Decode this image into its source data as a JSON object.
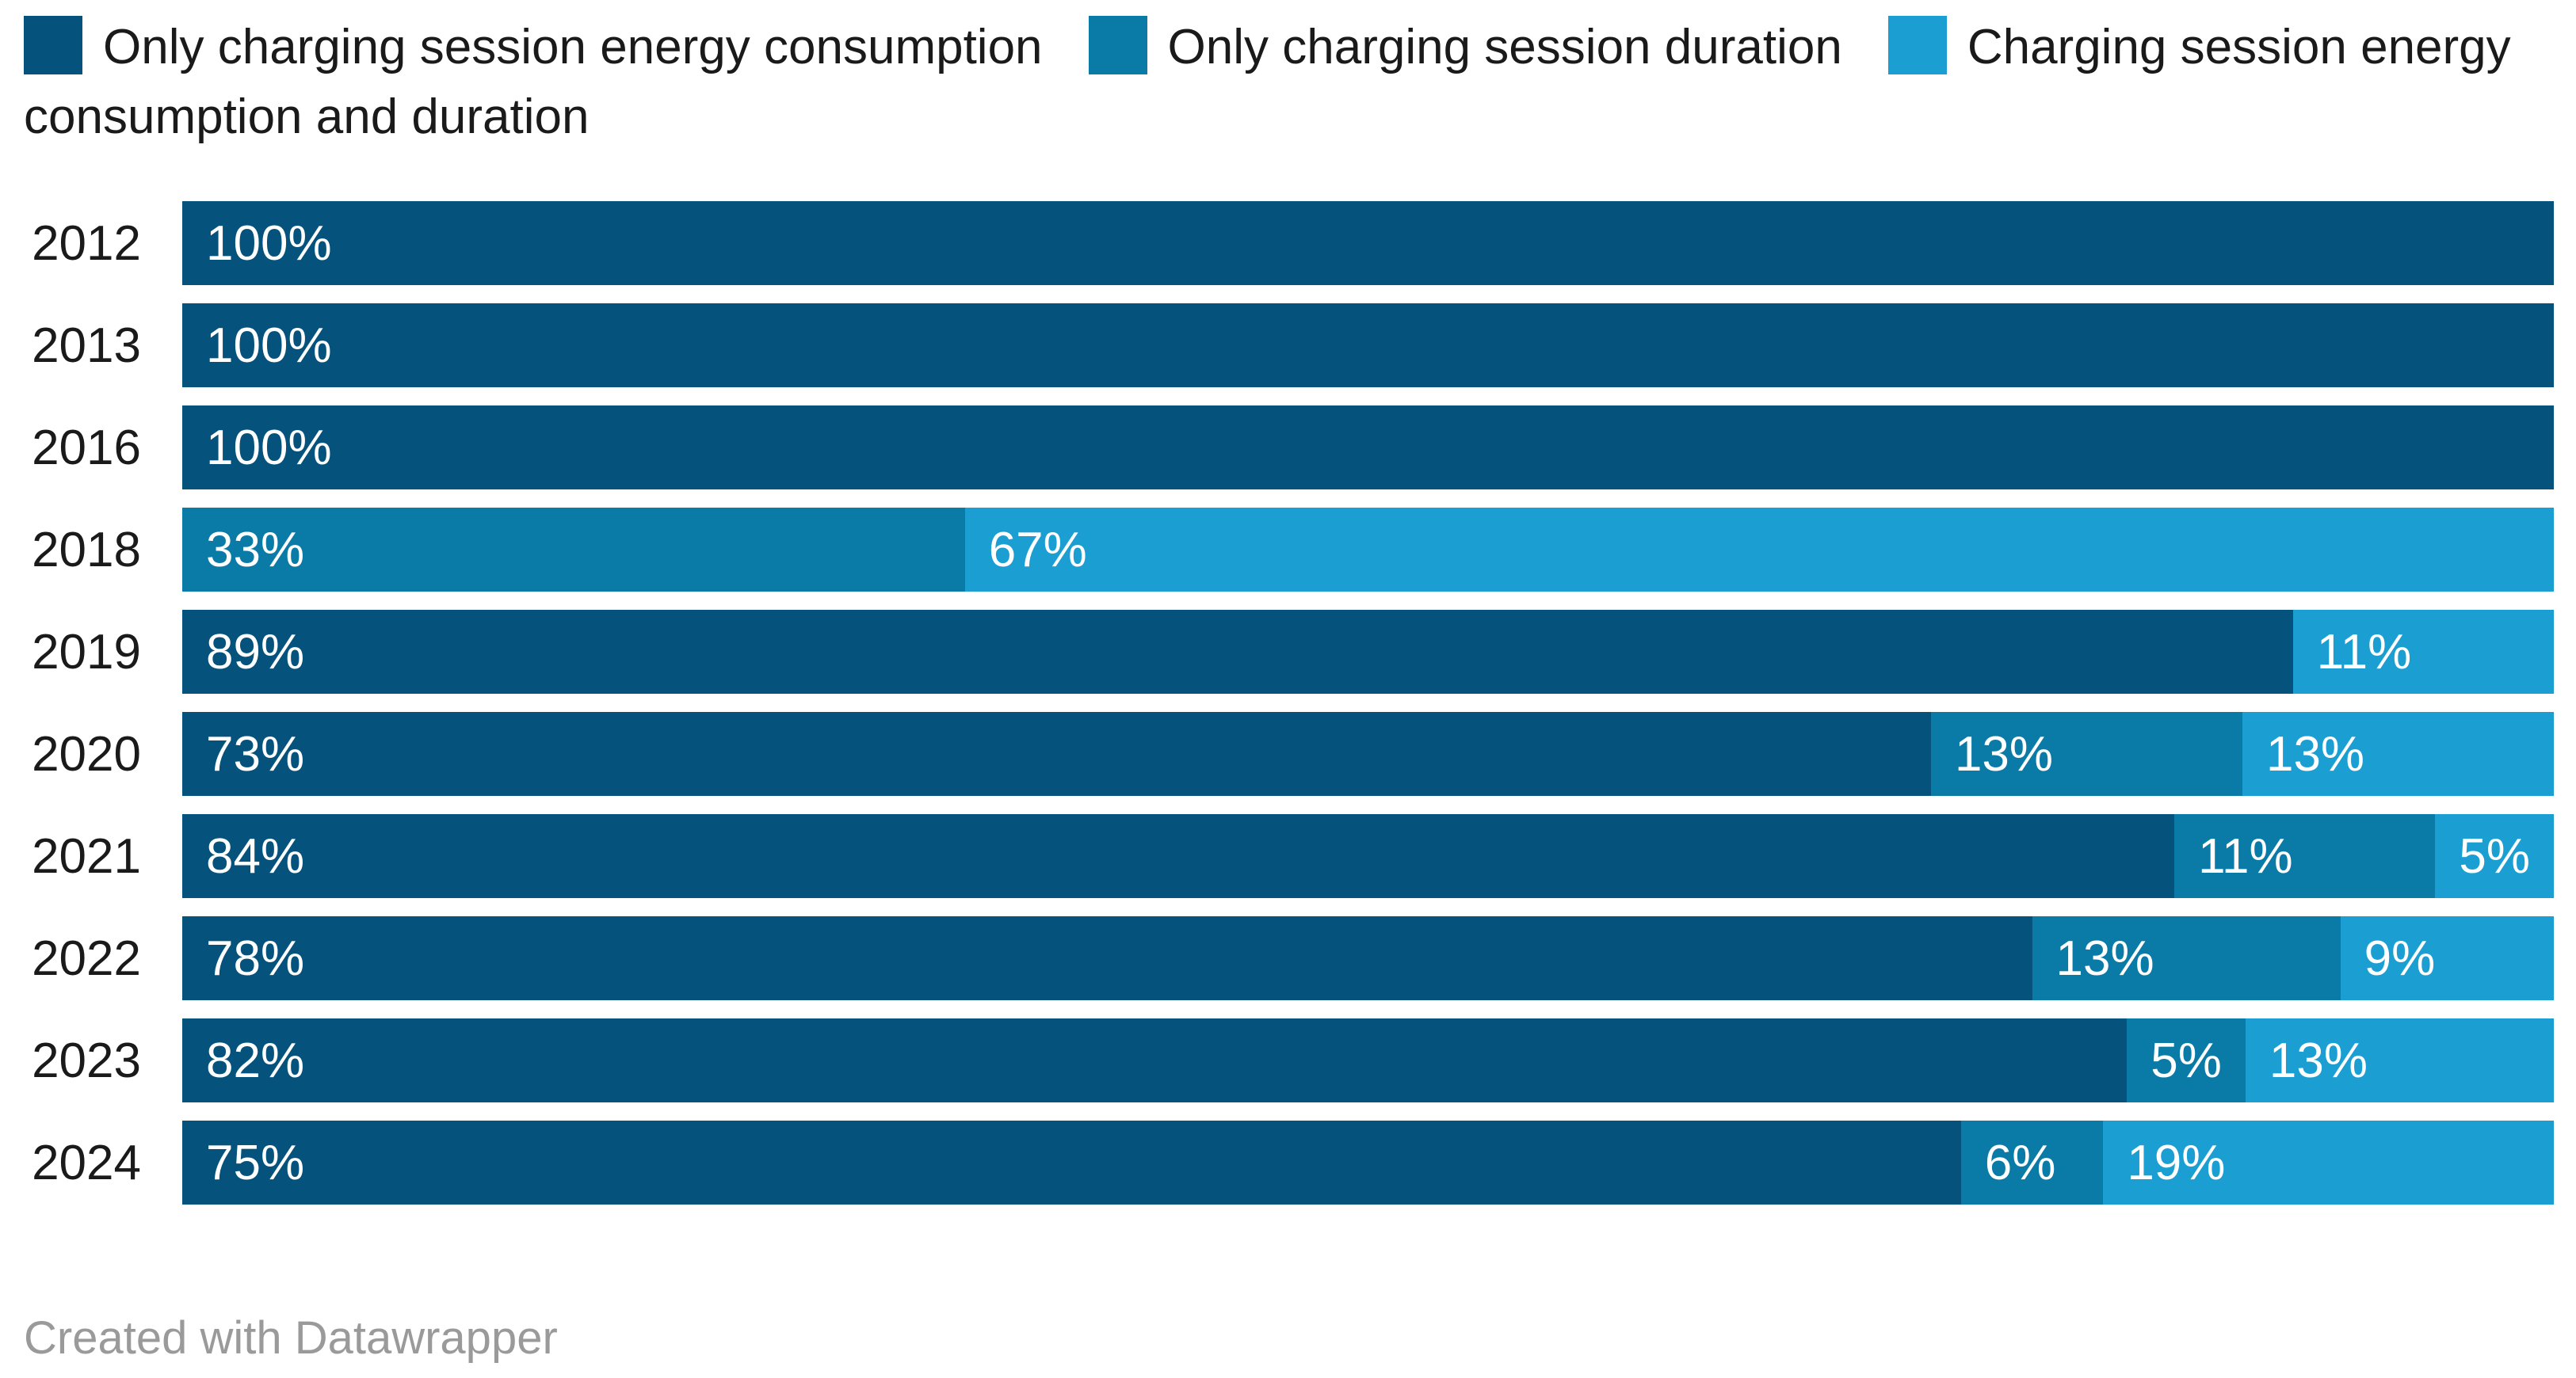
{
  "chart_data": {
    "type": "bar",
    "subtype": "horizontal-stacked-percentage",
    "orientation": "horizontal",
    "stacked": true,
    "grid": false,
    "legend_position": "top",
    "bar_labels": "inside-left",
    "value_unit": "%",
    "xlim": [
      0,
      100
    ],
    "categories": [
      "2012",
      "2013",
      "2016",
      "2018",
      "2019",
      "2020",
      "2021",
      "2022",
      "2023",
      "2024"
    ],
    "series": [
      {
        "name": "Only charging session energy consumption",
        "color": "#05527d",
        "values": [
          100,
          100,
          100,
          0,
          89,
          73,
          84,
          78,
          82,
          75
        ],
        "labels": [
          "100%",
          "100%",
          "100%",
          null,
          "89%",
          "73%",
          "84%",
          "78%",
          "82%",
          "75%"
        ]
      },
      {
        "name": "Only charging session duration",
        "color": "#0a7aa6",
        "values": [
          0,
          0,
          0,
          33,
          0,
          13,
          11,
          13,
          5,
          6
        ],
        "labels": [
          null,
          null,
          null,
          "33%",
          null,
          "13%",
          "11%",
          "13%",
          "5%",
          "6%"
        ]
      },
      {
        "name": "Charging session energy consumption and duration",
        "color": "#1b9fd3",
        "values": [
          0,
          0,
          0,
          67,
          11,
          13,
          5,
          9,
          13,
          19
        ],
        "labels": [
          null,
          null,
          null,
          "67%",
          "11%",
          "13%",
          "5%",
          "9%",
          "13%",
          "19%"
        ]
      }
    ]
  },
  "colors": {
    "series_dark": "#05527d",
    "series_medium": "#0a7aa6",
    "series_light": "#1b9fd3",
    "label_text": "#1a1a1a",
    "bar_value_text": "#ffffff",
    "footer_text": "#9a9a9a",
    "background": "#ffffff"
  },
  "footer": {
    "credit": "Created with Datawrapper"
  }
}
